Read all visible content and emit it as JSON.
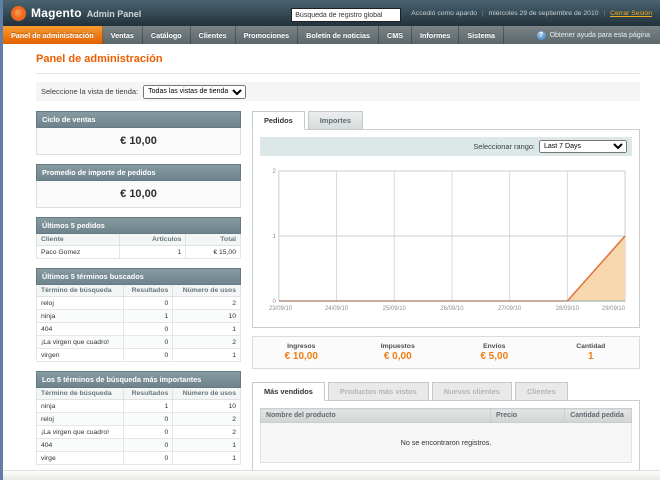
{
  "colors": {
    "accent": "#eb5e00",
    "nav_active": "#e25f00",
    "box_header": "#7d939c",
    "chart_line": "#e0763c",
    "chart_fill": "#f7d8ae",
    "link_yellow": "#f2b01e"
  },
  "header": {
    "logo_name": "Magento",
    "logo_sub": "Admin Panel",
    "search_value": "Búsqueda de registro global",
    "logged_in_as": "Accedió como apardo",
    "date": "miércoles 29 de septiembre de 2010",
    "logout_label": "Cerrar Sesión"
  },
  "nav": {
    "items": [
      "Panel de administración",
      "Ventas",
      "Catálogo",
      "Clientes",
      "Promociones",
      "Boletín de noticias",
      "CMS",
      "Informes",
      "Sistema"
    ],
    "help_label": "Obtener ayuda para esta página"
  },
  "page": {
    "title": "Panel de administración",
    "store_view_label": "Seleccione la vista de tienda:",
    "store_view_value": "Todas las vistas de tienda"
  },
  "sidebar": {
    "lifetime": {
      "title": "Ciclo de ventas",
      "value": "€ 10,00"
    },
    "average": {
      "title": "Promedio de importe de pedidos",
      "value": "€ 10,00"
    },
    "last_orders": {
      "title": "Últimos 5 pedidos",
      "headers": [
        "Cliente",
        "Artículos",
        "Total"
      ],
      "rows": [
        [
          "Paco Gomez",
          "1",
          "€ 15,00"
        ]
      ]
    },
    "last_search": {
      "title": "Últimos 5 términos buscados",
      "headers": [
        "Término de búsqueda",
        "Resultados",
        "Número de usos"
      ],
      "rows": [
        [
          "reloj",
          "0",
          "2"
        ],
        [
          "ninja",
          "1",
          "10"
        ],
        [
          "404",
          "0",
          "1"
        ],
        [
          "¡La virgen que cuadro!",
          "0",
          "2"
        ],
        [
          "virgen",
          "0",
          "1"
        ]
      ]
    },
    "top_search": {
      "title": "Los 5 términos de búsqueda más importantes",
      "headers": [
        "Término de búsqueda",
        "Resultados",
        "Número de usos"
      ],
      "rows": [
        [
          "ninja",
          "1",
          "10"
        ],
        [
          "reloj",
          "0",
          "2"
        ],
        [
          "¡La virgen que cuadro!",
          "0",
          "2"
        ],
        [
          "404",
          "0",
          "1"
        ],
        [
          "virge",
          "0",
          "1"
        ]
      ]
    }
  },
  "main": {
    "tabs": [
      "Pedidos",
      "Importes"
    ],
    "range_label": "Seleccionar rango:",
    "range_value": "Last 7 Days",
    "totals": [
      {
        "label": "Ingresos",
        "value": "€ 10,00"
      },
      {
        "label": "Impuestos",
        "value": "€ 0,00"
      },
      {
        "label": "Envíos",
        "value": "€ 5,00"
      },
      {
        "label": "Cantidad",
        "value": "1"
      }
    ],
    "bottom_tabs": [
      "Más vendidos",
      "Productos más vistos",
      "Nuevos clientes",
      "Clientes"
    ],
    "products_table": {
      "headers": [
        "Nombre del producto",
        "Precio",
        "Cantidad pedida"
      ],
      "empty": "No se encontraron registros."
    }
  },
  "chart_data": {
    "type": "area",
    "title": "",
    "xlabel": "",
    "ylabel": "",
    "x": [
      "23/09/10",
      "24/09/10",
      "25/09/10",
      "26/09/10",
      "27/09/10",
      "28/09/10",
      "29/09/10"
    ],
    "series": [
      {
        "name": "Pedidos",
        "values": [
          0,
          0,
          0,
          0,
          0,
          0,
          1
        ]
      }
    ],
    "yticks": [
      0,
      1,
      2
    ],
    "ylim": [
      0,
      2
    ],
    "grid": true,
    "legend": "none"
  }
}
